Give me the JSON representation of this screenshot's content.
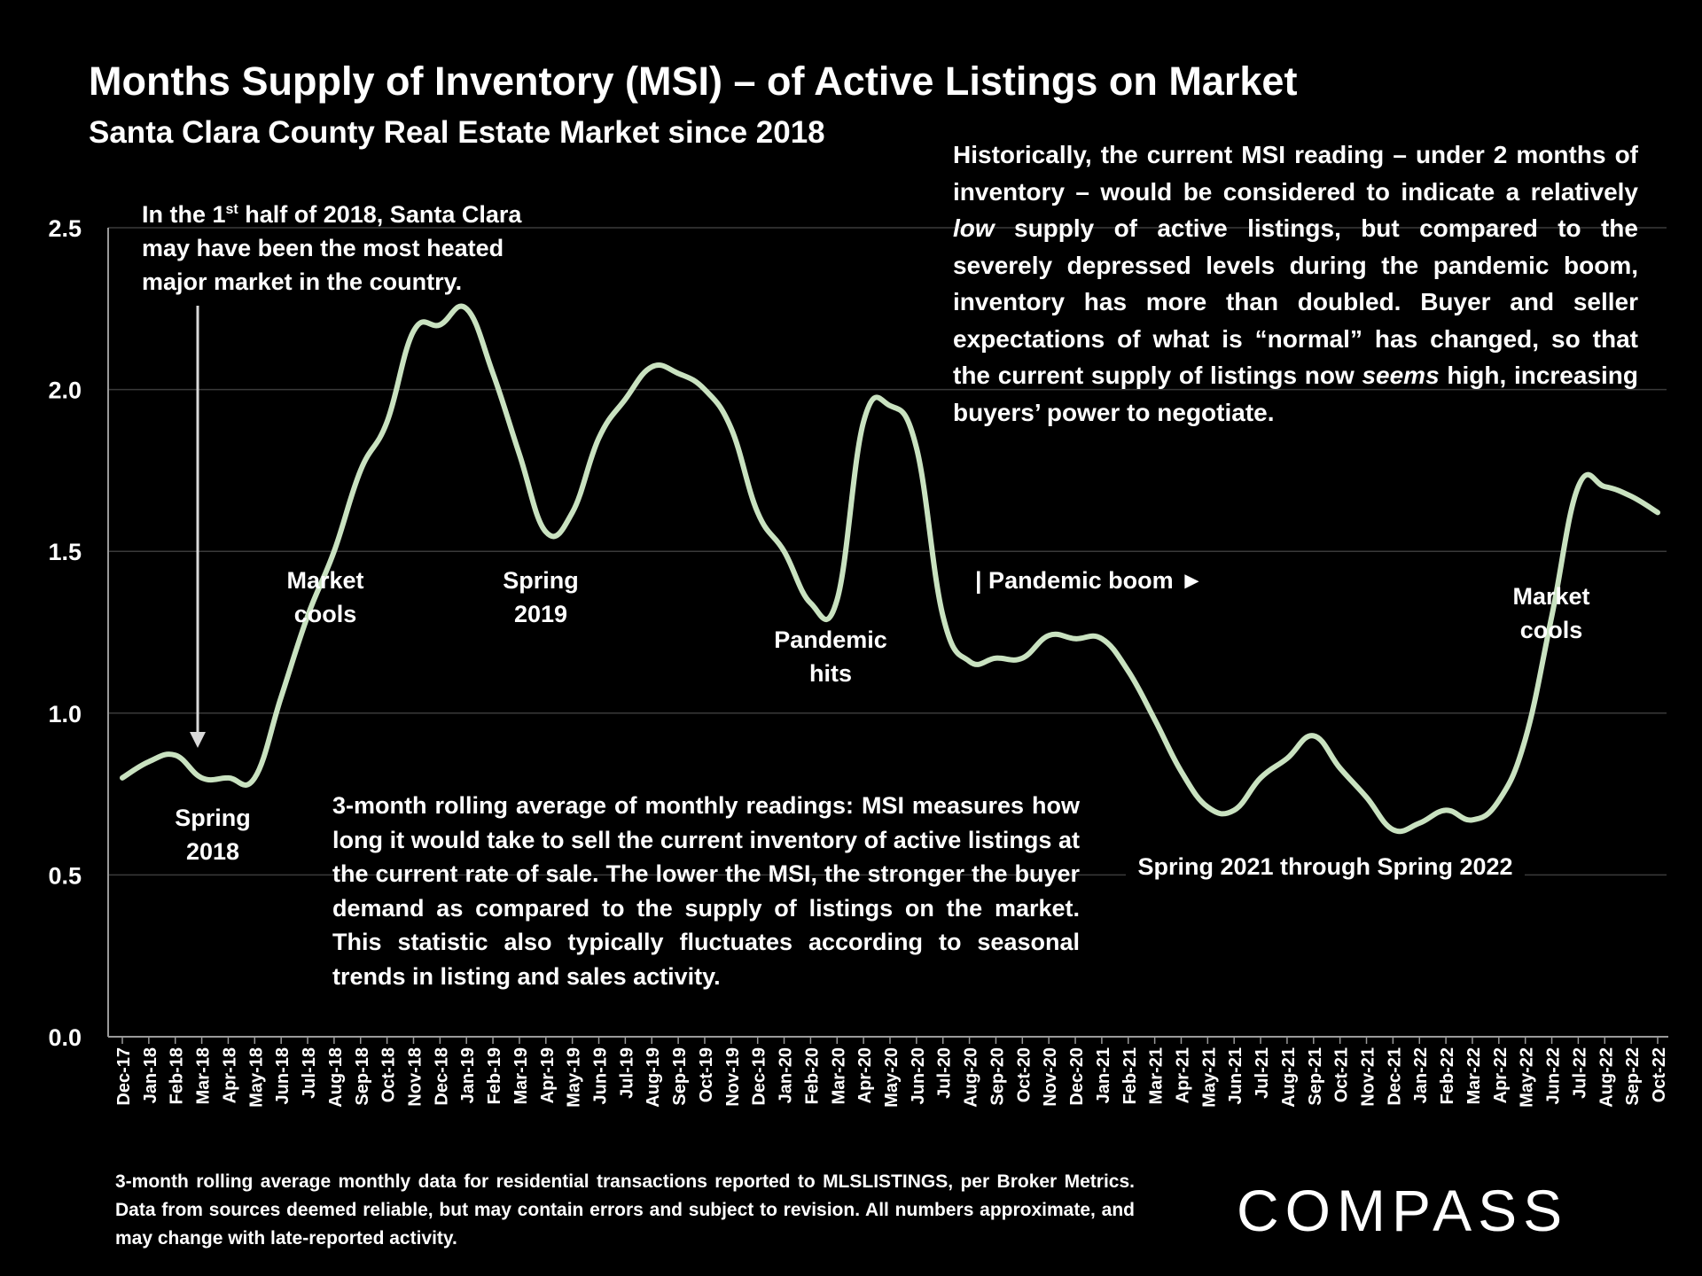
{
  "title": "Months Supply of Inventory (MSI) – of Active Listings on Market",
  "subtitle": "Santa Clara County Real Estate Market since 2018",
  "note_right": {
    "p1": "Historically, the current MSI reading – under 2 months of inventory – would be considered to indicate a relatively ",
    "p1_em": "low",
    "p1_end": " supply of active listings, but compared to the severely depressed levels during the pandemic boom, inventory has more than doubled. Buyer and seller expectations of what is “normal” has changed, so that the current supply of listings now ",
    "p2_em": "seems",
    "p2_end": " high, increasing buyers’ power to negotiate."
  },
  "note_left": {
    "pre": "In the 1",
    "sup": "st",
    "post": " half of 2018, Santa Clara may have been the most heated major market in the country."
  },
  "note_center": "3-month rolling average of monthly readings: MSI measures how long it would take to sell the current inventory of active listings at the current rate of sale. The lower the MSI, the stronger the buyer demand as compared to the supply of listings on the market. This statistic also typically fluctuates according to seasonal trends in listing and sales activity.",
  "annotations": {
    "spring2018_1": "Spring",
    "spring2018_2": "2018",
    "marketcools1_1": "Market",
    "marketcools1_2": "cools",
    "spring2019_1": "Spring",
    "spring2019_2": "2019",
    "pandemic_hits_1": "Pandemic",
    "pandemic_hits_2": "hits",
    "pandemic_boom": "| Pandemic boom ►",
    "spring2021": "Spring 2021 through Spring 2022",
    "marketcools2_1": "Market",
    "marketcools2_2": "cools"
  },
  "footer": "3-month rolling average monthly data for residential transactions reported to MLSLISTINGS, per Broker Metrics. Data from sources deemed reliable, but may contain errors and subject to revision. All numbers approximate, and may change with late-reported activity.",
  "logo": "COMPASS",
  "colors": {
    "line": "#c9e2c0",
    "grid": "#3a3a3a",
    "axis": "#9a9a9a",
    "text": "#ffffff",
    "background": "#000000"
  },
  "chart_data": {
    "type": "line",
    "title": "Months Supply of Inventory (MSI) – of Active Listings on Market",
    "xlabel": "",
    "ylabel": "",
    "ylim": [
      0,
      2.5
    ],
    "yticks": [
      "0.0",
      "0.5",
      "1.0",
      "1.5",
      "2.0",
      "2.5"
    ],
    "grid": true,
    "categories": [
      "Dec-17",
      "Jan-18",
      "Feb-18",
      "Mar-18",
      "Apr-18",
      "May-18",
      "Jun-18",
      "Jul-18",
      "Aug-18",
      "Sep-18",
      "Oct-18",
      "Nov-18",
      "Dec-18",
      "Jan-19",
      "Feb-19",
      "Mar-19",
      "Apr-19",
      "May-19",
      "Jun-19",
      "Jul-19",
      "Aug-19",
      "Sep-19",
      "Oct-19",
      "Nov-19",
      "Dec-19",
      "Jan-20",
      "Feb-20",
      "Mar-20",
      "Apr-20",
      "May-20",
      "Jun-20",
      "Jul-20",
      "Aug-20",
      "Sep-20",
      "Oct-20",
      "Nov-20",
      "Dec-20",
      "Jan-21",
      "Feb-21",
      "Mar-21",
      "Apr-21",
      "May-21",
      "Jun-21",
      "Jul-21",
      "Aug-21",
      "Sep-21",
      "Oct-21",
      "Nov-21",
      "Dec-21",
      "Jan-22",
      "Feb-22",
      "Mar-22",
      "Apr-22",
      "May-22",
      "Jun-22",
      "Jul-22",
      "Aug-22",
      "Sep-22",
      "Oct-22"
    ],
    "series": [
      {
        "name": "MSI",
        "values": [
          0.8,
          0.85,
          0.87,
          0.8,
          0.8,
          0.8,
          1.05,
          1.3,
          1.5,
          1.75,
          1.9,
          2.18,
          2.2,
          2.25,
          2.05,
          1.8,
          1.56,
          1.62,
          1.85,
          1.97,
          2.07,
          2.05,
          2.0,
          1.88,
          1.62,
          1.5,
          1.34,
          1.35,
          1.9,
          1.95,
          1.82,
          1.3,
          1.16,
          1.17,
          1.17,
          1.24,
          1.23,
          1.23,
          1.13,
          0.98,
          0.82,
          0.71,
          0.7,
          0.8,
          0.86,
          0.93,
          0.83,
          0.74,
          0.64,
          0.66,
          0.7,
          0.67,
          0.73,
          0.92,
          1.3,
          1.7,
          1.7,
          1.67,
          1.62
        ]
      }
    ]
  }
}
